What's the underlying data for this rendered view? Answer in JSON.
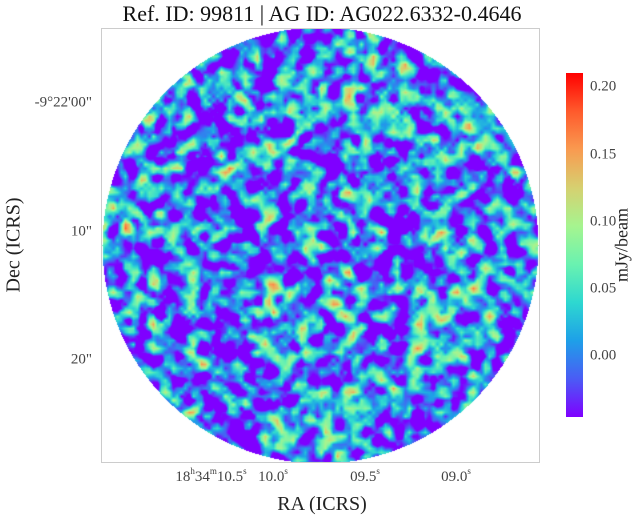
{
  "chart_data": {
    "type": "heatmap",
    "title": "Ref. ID: 99811 | AG ID: AG022.6332-0.4646",
    "xlabel": "RA (ICRS)",
    "ylabel": "Dec (ICRS)",
    "x_ticks": [
      {
        "h": "18",
        "m": "34",
        "s": "10.5"
      },
      {
        "s": "10.0"
      },
      {
        "s": "09.5"
      },
      {
        "s": "09.0"
      }
    ],
    "y_ticks": [
      "-9°22'00\"",
      "10\"",
      "20\""
    ],
    "colorbar": {
      "label": "mJy/beam",
      "ticks": [
        "0.20",
        "0.15",
        "0.10",
        "0.05",
        "0.00"
      ],
      "range": [
        -0.045,
        0.21
      ],
      "colormap": "rainbow"
    },
    "field_shape": "circle",
    "grid": false
  }
}
